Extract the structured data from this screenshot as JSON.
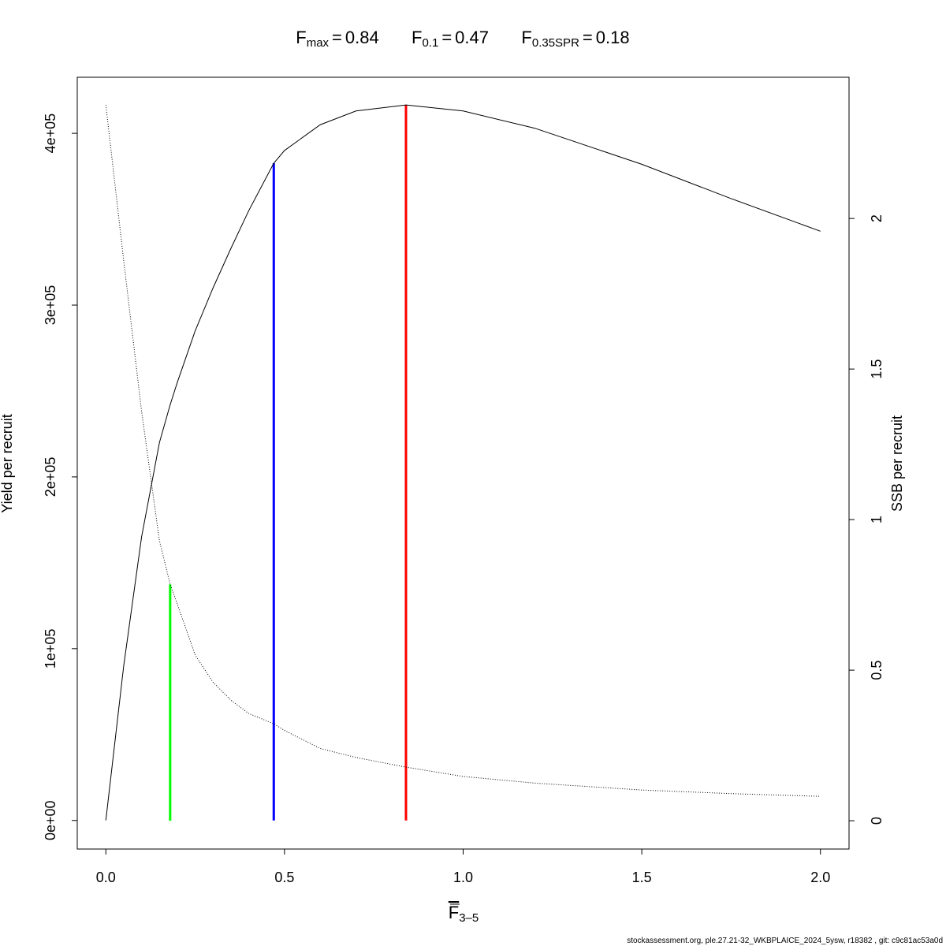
{
  "chart_data": {
    "type": "line",
    "title": [
      {
        "base": "F",
        "sub": "max",
        "rel": "=",
        "value": 0.84
      },
      {
        "base": "F",
        "sub": "0.1",
        "rel": "=",
        "value": 0.47
      },
      {
        "base": "F",
        "sub": "0.35SPR",
        "rel": "=",
        "value": 0.18
      }
    ],
    "x_label": {
      "base": "F",
      "sub": "3–5"
    },
    "y_label": "Yield per recruit",
    "y2_label": "SSB per recruit",
    "footer": "stockassessment.org, ple.27.21-32_WKBPLAICE_2024_5ysw, r18382 , git: c9c81ac53a0d",
    "x": [
      0,
      0.05,
      0.1,
      0.15,
      0.18,
      0.2,
      0.25,
      0.3,
      0.35,
      0.4,
      0.47,
      0.5,
      0.6,
      0.7,
      0.84,
      1.0,
      1.2,
      1.5,
      1.75,
      2.0
    ],
    "series": [
      {
        "name": "Yield per recruit",
        "color": "#000000",
        "style": "solid",
        "values": [
          0,
          90000,
          165000,
          220000,
          242000,
          255000,
          285000,
          310000,
          333000,
          355000,
          382600,
          390000,
          405000,
          413000,
          416500,
          413000,
          403000,
          382000,
          362000,
          343000
        ]
      },
      {
        "name": "SSB per recruit",
        "color": "#000000",
        "style": "dotted",
        "axis": "y2",
        "values": [
          2.377,
          1.86,
          1.36,
          0.93,
          0.785,
          0.72,
          0.55,
          0.46,
          0.4,
          0.356,
          0.322,
          0.3,
          0.24,
          0.21,
          0.178,
          0.147,
          0.125,
          0.102,
          0.09,
          0.081
        ]
      }
    ],
    "reference_lines": [
      {
        "color": "#ff0000",
        "top": 416500
      },
      {
        "color": "#0000ff",
        "top": 382600
      },
      {
        "color": "#00ff00",
        "top": 0.785,
        "axis": "y2"
      }
    ],
    "xlim": [
      -0.08,
      2.08
    ],
    "xticks": [
      {
        "value": 0,
        "label": "0.0"
      },
      0.5,
      {
        "value": 1,
        "label": "1.0"
      },
      1.5,
      {
        "value": 2,
        "label": "2.0"
      }
    ],
    "ylim": [
      -16640,
      432640
    ],
    "yticks": [
      {
        "value": 0,
        "label": "0e+00"
      },
      {
        "value": 100000,
        "label": "1e+05"
      },
      {
        "value": 200000,
        "label": "2e+05"
      },
      {
        "value": 300000,
        "label": "3e+05"
      },
      {
        "value": 400000,
        "label": "4e+05"
      }
    ],
    "y2lim": [
      -0.094,
      2.469
    ],
    "y2ticks": [
      0,
      0.5,
      1,
      1.5,
      2
    ]
  }
}
